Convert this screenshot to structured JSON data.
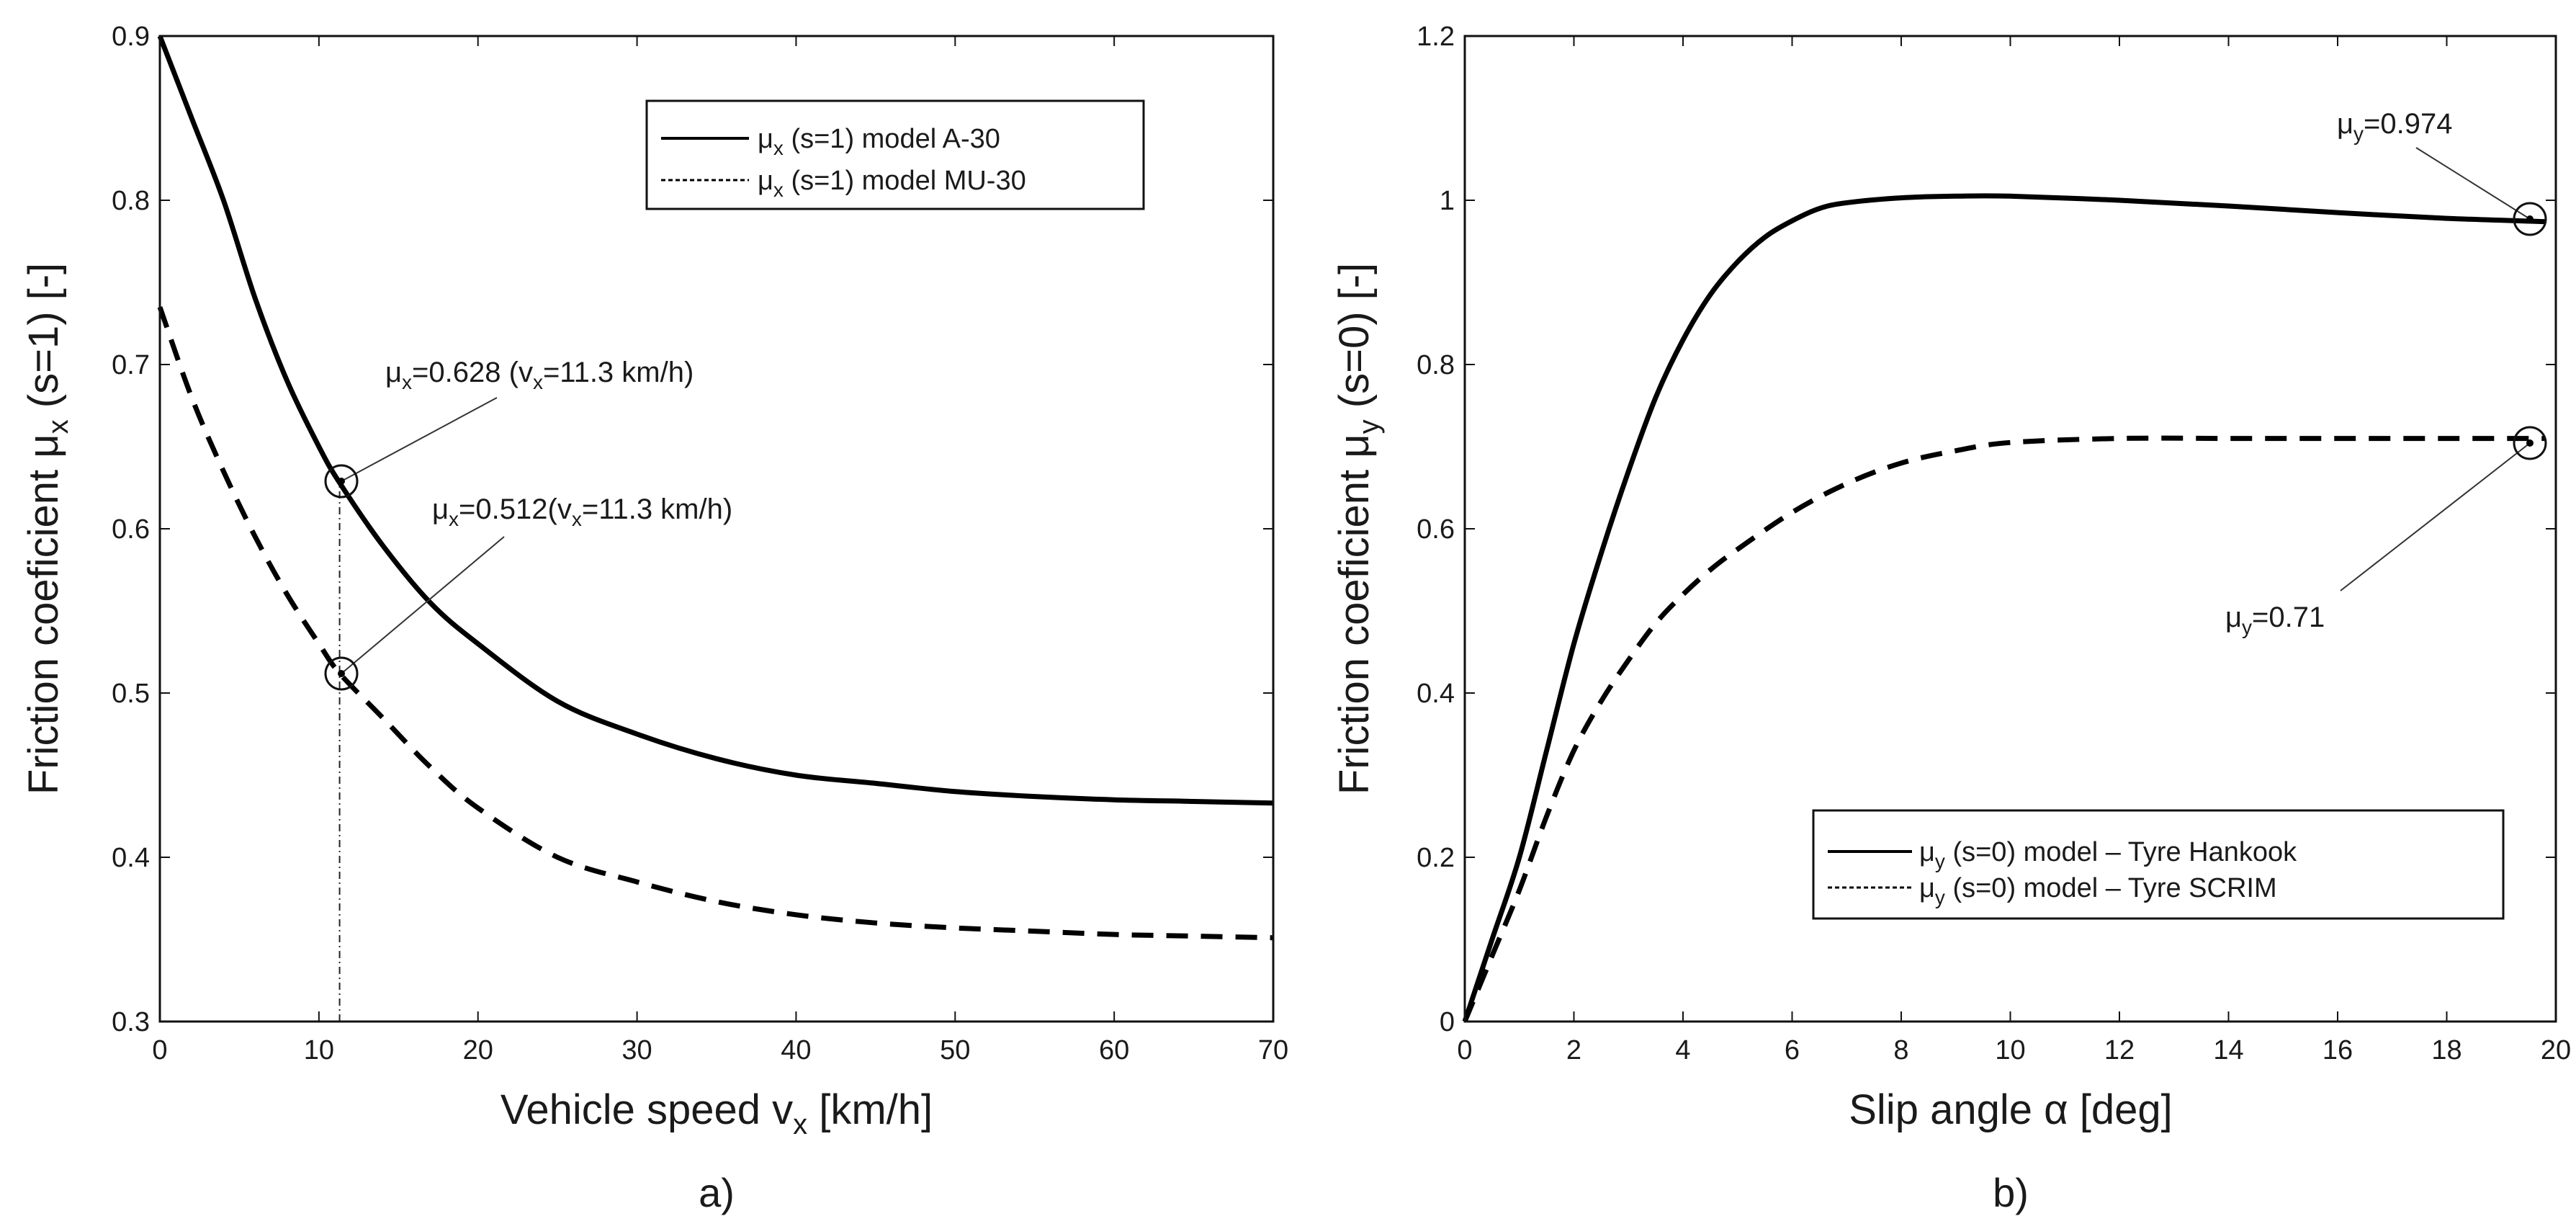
{
  "chart_data": [
    {
      "type": "line",
      "panel_label": "a)",
      "xlabel_main": "Vehicle speed v",
      "xlabel_sub": "x",
      "xlabel_unit": " [km/h]",
      "ylabel_main": "Friction coeficient μ",
      "ylabel_sub": "x",
      "ylabel_rest": " (s=1) [-]",
      "xlim": [
        0,
        70
      ],
      "ylim": [
        0.3,
        0.9
      ],
      "xticks": [
        0,
        10,
        20,
        30,
        40,
        50,
        60,
        70
      ],
      "yticks": [
        0.3,
        0.4,
        0.5,
        0.6,
        0.7,
        0.8,
        0.9
      ],
      "xtick_labels": [
        "0",
        "10",
        "20",
        "30",
        "40",
        "50",
        "60",
        "70"
      ],
      "ytick_labels": [
        "0.3",
        "0.4",
        "0.5",
        "0.6",
        "0.7",
        "0.8",
        "0.9"
      ],
      "legend_position": "top-right",
      "series": [
        {
          "name": "model A-30",
          "legend": {
            "mu": "μ",
            "sub": "x",
            "rest": " (s=1) model A-30"
          },
          "style": "solid",
          "x": [
            0,
            2,
            4,
            6,
            8,
            10,
            11.3,
            14,
            17,
            20,
            25,
            30,
            35,
            40,
            45,
            50,
            55,
            60,
            65,
            70
          ],
          "y": [
            0.9,
            0.85,
            0.8,
            0.74,
            0.69,
            0.65,
            0.628,
            0.59,
            0.555,
            0.53,
            0.495,
            0.475,
            0.46,
            0.45,
            0.445,
            0.44,
            0.437,
            0.435,
            0.434,
            0.433
          ]
        },
        {
          "name": "model MU-30",
          "legend": {
            "mu": "μ",
            "sub": "x",
            "rest": " (s=1) model MU-30"
          },
          "style": "dashed",
          "x": [
            0,
            2,
            4,
            6,
            8,
            10,
            11.3,
            14,
            17,
            20,
            25,
            30,
            35,
            40,
            45,
            50,
            55,
            60,
            65,
            70
          ],
          "y": [
            0.735,
            0.68,
            0.635,
            0.595,
            0.56,
            0.53,
            0.512,
            0.485,
            0.455,
            0.43,
            0.4,
            0.385,
            0.373,
            0.365,
            0.36,
            0.357,
            0.355,
            0.353,
            0.352,
            0.351
          ]
        }
      ],
      "vline_x": 11.3,
      "annotations": [
        {
          "mu": "μ",
          "sub": "x",
          "value": "=0.628 (v",
          "vsub": "x",
          "tail": "=11.3 km/h)",
          "point": [
            11.3,
            0.628
          ]
        },
        {
          "mu": "μ",
          "sub": "x",
          "value": "=0.512(v",
          "vsub": "x",
          "tail": "=11.3 km/h)",
          "point": [
            11.3,
            0.512
          ]
        }
      ]
    },
    {
      "type": "line",
      "panel_label": "b)",
      "xlabel_main": "Slip angle α [deg]",
      "ylabel_main": "Friction coeficient μ",
      "ylabel_sub": "y",
      "ylabel_rest": " (s=0) [-]",
      "xlim": [
        0,
        20
      ],
      "ylim": [
        0,
        1.2
      ],
      "xticks": [
        0,
        2,
        4,
        6,
        8,
        10,
        12,
        14,
        16,
        18,
        20
      ],
      "yticks": [
        0,
        0.2,
        0.4,
        0.6,
        0.8,
        1.0,
        1.2
      ],
      "xtick_labels": [
        "0",
        "2",
        "4",
        "6",
        "8",
        "10",
        "12",
        "14",
        "16",
        "18",
        "20"
      ],
      "ytick_labels": [
        "0",
        "0.2",
        "0.4",
        "0.6",
        "0.8",
        "1",
        "1.2"
      ],
      "legend_position": "bottom-right",
      "series": [
        {
          "name": "Tyre Hankook",
          "legend": {
            "mu": "μ",
            "sub": "y",
            "rest": " (s=0) model – Tyre Hankook"
          },
          "style": "solid",
          "x": [
            0,
            0.5,
            1,
            1.5,
            2,
            2.5,
            3,
            3.5,
            4,
            4.5,
            5,
            5.5,
            6,
            6.5,
            7,
            8,
            9,
            10,
            12,
            14,
            16,
            18,
            19.8
          ],
          "y": [
            0,
            0.1,
            0.2,
            0.33,
            0.46,
            0.57,
            0.67,
            0.76,
            0.83,
            0.885,
            0.925,
            0.955,
            0.975,
            0.99,
            0.997,
            1.003,
            1.005,
            1.005,
            1.0,
            0.993,
            0.985,
            0.978,
            0.974
          ]
        },
        {
          "name": "Tyre SCRIM",
          "legend": {
            "mu": "μ",
            "sub": "y",
            "rest": " (s=0) model – Tyre SCRIM"
          },
          "style": "dashed",
          "x": [
            0,
            0.5,
            1,
            1.5,
            2,
            2.5,
            3,
            3.5,
            4,
            4.5,
            5,
            6,
            7,
            8,
            9,
            10,
            12,
            14,
            16,
            18,
            19.8
          ],
          "y": [
            0,
            0.08,
            0.16,
            0.25,
            0.33,
            0.39,
            0.44,
            0.485,
            0.52,
            0.55,
            0.575,
            0.62,
            0.655,
            0.68,
            0.695,
            0.705,
            0.71,
            0.71,
            0.71,
            0.71,
            0.71
          ]
        }
      ],
      "annotations": [
        {
          "mu": "μ",
          "sub": "y",
          "value": "=0.974",
          "point": [
            19.8,
            0.974
          ]
        },
        {
          "mu": "μ",
          "sub": "y",
          "value": "=0.71",
          "point": [
            19.8,
            0.71
          ]
        }
      ]
    }
  ]
}
